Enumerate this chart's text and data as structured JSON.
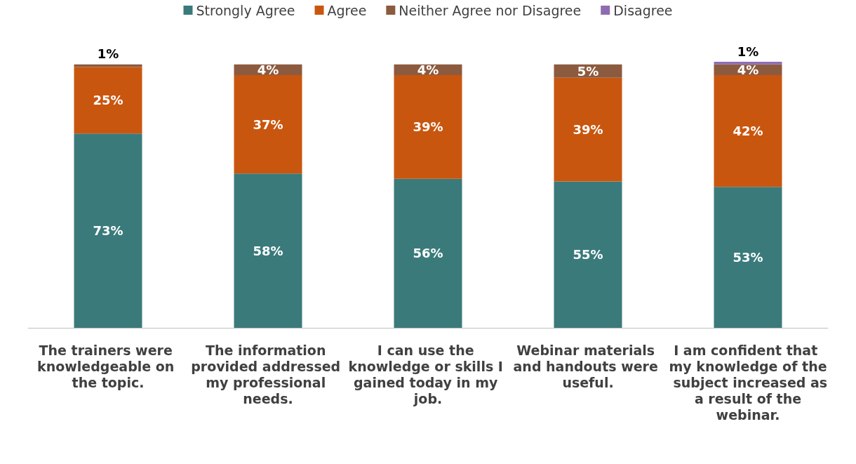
{
  "chart_data": {
    "type": "bar",
    "stacked": true,
    "legend": "top",
    "categories": [
      "The trainers were knowledgeable on the topic.",
      "The information provided addressed my professional needs.",
      "I can use the knowledge or skills I gained today in my job.",
      "Webinar materials and handouts were useful.",
      "I am confident that my knowledge of the subject increased as a result of the webinar."
    ],
    "series": [
      {
        "name": "Strongly Agree",
        "color": "#3a7a7b",
        "values": [
          73,
          58,
          56,
          55,
          53
        ],
        "value_labels": [
          "73%",
          "58%",
          "56%",
          "55%",
          "53%"
        ]
      },
      {
        "name": "Agree",
        "color": "#c9560f",
        "values": [
          25,
          37,
          39,
          39,
          42
        ],
        "value_labels": [
          "25%",
          "37%",
          "39%",
          "39%",
          "42%"
        ]
      },
      {
        "name": "Neither Agree nor Disagree",
        "color": "#8c5a3e",
        "values": [
          1,
          4,
          4,
          5,
          4
        ],
        "value_labels": [
          "1%",
          "4%",
          "4%",
          "5%",
          "4%"
        ]
      },
      {
        "name": "Disagree",
        "color": "#8e6cb2",
        "values": [
          null,
          null,
          null,
          null,
          1
        ],
        "value_labels": [
          null,
          null,
          null,
          null,
          "1%"
        ]
      }
    ]
  }
}
